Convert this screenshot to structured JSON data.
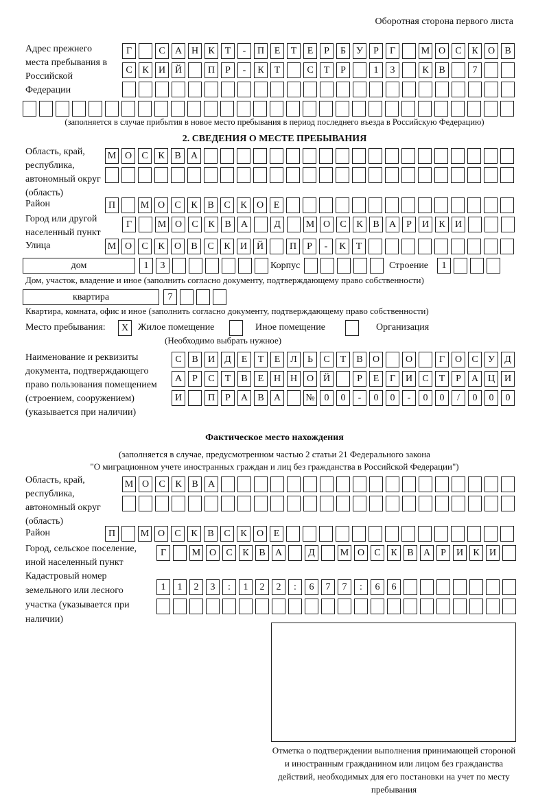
{
  "header": {
    "page_side": "Оборотная сторона первого листа"
  },
  "prev_address": {
    "label": "Адрес прежнего места пребывания в Российской Федерации",
    "rows": [
      [
        "Г",
        "",
        "С",
        "А",
        "Н",
        "К",
        "Т",
        "-",
        "П",
        "Е",
        "Т",
        "Е",
        "Р",
        "Б",
        "У",
        "Р",
        "Г",
        "",
        "М",
        "О",
        "С",
        "К",
        "О",
        "В"
      ],
      [
        "С",
        "К",
        "И",
        "Й",
        "",
        "П",
        "Р",
        "-",
        "К",
        "Т",
        "",
        "С",
        "Т",
        "Р",
        "",
        "1",
        "3",
        "",
        "К",
        "В",
        "",
        "7",
        "",
        ""
      ],
      [
        "",
        "",
        "",
        "",
        "",
        "",
        "",
        "",
        "",
        "",
        "",
        "",
        "",
        "",
        "",
        "",
        "",
        "",
        "",
        "",
        "",
        "",
        "",
        ""
      ],
      [
        "",
        "",
        "",
        "",
        "",
        "",
        "",
        "",
        "",
        "",
        "",
        "",
        "",
        "",
        "",
        "",
        "",
        "",
        "",
        "",
        "",
        "",
        "",
        "",
        "",
        "",
        "",
        "",
        "",
        ""
      ]
    ],
    "note": "(заполняется в случае прибытия в новое место пребывания в период последнего въезда в Российскую Федерацию)"
  },
  "section2": {
    "title": "2. СВЕДЕНИЯ О МЕСТЕ ПРЕБЫВАНИЯ",
    "region_label": "Область, край, республика, автономный округ (область)",
    "region_rows": [
      [
        "М",
        "О",
        "С",
        "К",
        "В",
        "А",
        "",
        "",
        "",
        "",
        "",
        "",
        "",
        "",
        "",
        "",
        "",
        "",
        "",
        "",
        "",
        "",
        "",
        "",
        ""
      ],
      [
        "",
        "",
        "",
        "",
        "",
        "",
        "",
        "",
        "",
        "",
        "",
        "",
        "",
        "",
        "",
        "",
        "",
        "",
        "",
        "",
        "",
        "",
        "",
        "",
        ""
      ]
    ],
    "district_label": "Район",
    "district": [
      "П",
      "",
      "М",
      "О",
      "С",
      "К",
      "В",
      "С",
      "К",
      "О",
      "Е",
      "",
      "",
      "",
      "",
      "",
      "",
      "",
      "",
      "",
      "",
      "",
      "",
      "",
      ""
    ],
    "city_label": "Город или другой населенный пункт",
    "city": [
      "Г",
      "",
      "М",
      "О",
      "С",
      "К",
      "В",
      "А",
      "",
      "Д",
      "",
      "М",
      "О",
      "С",
      "К",
      "В",
      "А",
      "Р",
      "И",
      "К",
      "И",
      "",
      "",
      ""
    ],
    "street_label": "Улица",
    "street": [
      "М",
      "О",
      "С",
      "К",
      "О",
      "В",
      "С",
      "К",
      "И",
      "Й",
      "",
      "П",
      "Р",
      "-",
      "К",
      "Т",
      "",
      "",
      "",
      "",
      "",
      "",
      "",
      "",
      ""
    ],
    "house_type": "дом",
    "house": [
      "1",
      "3",
      "",
      "",
      "",
      "",
      "",
      ""
    ],
    "korpus_label": "Корпус",
    "korpus": [
      "",
      "",
      "",
      "",
      ""
    ],
    "building_label": "Строение",
    "building": [
      "1",
      "",
      "",
      ""
    ],
    "house_note": "Дом, участок, владение и иное (заполнить согласно документу, подтверждающему право собственности)",
    "flat_type": "квартира",
    "flat": [
      "7",
      "",
      "",
      ""
    ],
    "flat_note": "Квартира, комната, офис и иное (заполнить согласно документу, подтверждающему право собственности)",
    "place_label": "Место пребывания:",
    "options": [
      {
        "label": "Жилое помещение",
        "mark": "X"
      },
      {
        "label": "Иное помещение",
        "mark": ""
      },
      {
        "label": "Организация",
        "mark": ""
      }
    ],
    "choose_note": "(Необходимо выбрать нужное)",
    "doc_label": "Наименование и реквизиты документа, подтверждающего право пользования помещением (строением, сооружением) (указывается при наличии)",
    "doc_rows": [
      [
        "С",
        "В",
        "И",
        "Д",
        "Е",
        "Т",
        "Е",
        "Л",
        "Ь",
        "С",
        "Т",
        "В",
        "О",
        "",
        "О",
        "",
        "Г",
        "О",
        "С",
        "У",
        "Д"
      ],
      [
        "А",
        "Р",
        "С",
        "Т",
        "В",
        "Е",
        "Н",
        "Н",
        "О",
        "Й",
        "",
        "Р",
        "Е",
        "Г",
        "И",
        "С",
        "Т",
        "Р",
        "А",
        "Ц",
        "И"
      ],
      [
        "И",
        "",
        "П",
        "Р",
        "А",
        "В",
        "А",
        "",
        "№",
        "0",
        "0",
        "-",
        "0",
        "0",
        "-",
        "0",
        "0",
        "/",
        "0",
        "0",
        "0"
      ]
    ]
  },
  "actual": {
    "title": "Фактическое место нахождения",
    "note1": "(заполняется в случае, предусмотренном частью 2 статьи 21 Федерального закона",
    "note2": "\"О миграционном учете иностранных граждан и лиц без гражданства в Российской Федерации\")",
    "region_label": "Область, край, республика, автономный округ (область)",
    "region_rows": [
      [
        "М",
        "О",
        "С",
        "К",
        "В",
        "А",
        "",
        "",
        "",
        "",
        "",
        "",
        "",
        "",
        "",
        "",
        "",
        "",
        "",
        "",
        "",
        "",
        "",
        ""
      ],
      [
        "",
        "",
        "",
        "",
        "",
        "",
        "",
        "",
        "",
        "",
        "",
        "",
        "",
        "",
        "",
        "",
        "",
        "",
        "",
        "",
        "",
        "",
        "",
        ""
      ]
    ],
    "district_label": "Район",
    "district": [
      "П",
      "",
      "М",
      "О",
      "С",
      "К",
      "В",
      "С",
      "К",
      "О",
      "Е",
      "",
      "",
      "",
      "",
      "",
      "",
      "",
      "",
      "",
      "",
      "",
      "",
      "",
      ""
    ],
    "city_label": "Город, сельское поселение, иной населенный пункт",
    "city": [
      "Г",
      "",
      "М",
      "О",
      "С",
      "К",
      "В",
      "А",
      "",
      "Д",
      "",
      "М",
      "О",
      "С",
      "К",
      "В",
      "А",
      "Р",
      "И",
      "К",
      "И",
      ""
    ],
    "cadastral_label": "Кадастровый номер земельного или лесного участка (указывается при наличии)",
    "cadastral_rows": [
      [
        "1",
        "1",
        "2",
        "3",
        ":",
        "1",
        "2",
        "2",
        ":",
        "6",
        "7",
        "7",
        ":",
        "6",
        "6",
        "",
        "",
        "",
        "",
        "",
        "",
        ""
      ],
      [
        "",
        "",
        "",
        "",
        "",
        "",
        "",
        "",
        "",
        "",
        "",
        "",
        "",
        "",
        "",
        "",
        "",
        "",
        "",
        "",
        "",
        ""
      ]
    ],
    "stamp_caption": "Отметка о подтверждении выполнения принимающей стороной и иностранным гражданином или лицом без гражданства действий, необходимых для его постановки на учет по месту пребывания"
  }
}
